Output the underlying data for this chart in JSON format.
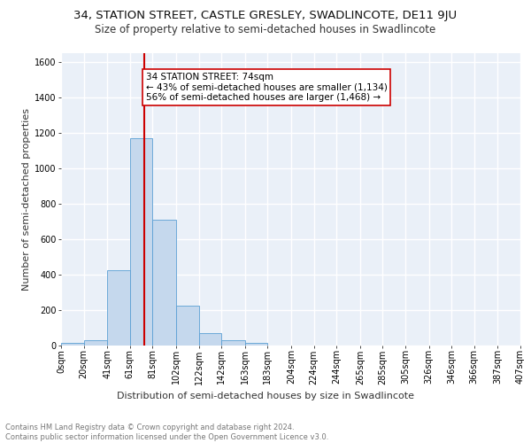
{
  "title_line1": "34, STATION STREET, CASTLE GRESLEY, SWADLINCOTE, DE11 9JU",
  "title_line2": "Size of property relative to semi-detached houses in Swadlincote",
  "xlabel": "Distribution of semi-detached houses by size in Swadlincote",
  "ylabel": "Number of semi-detached properties",
  "bin_edges": [
    0,
    20,
    41,
    61,
    81,
    102,
    122,
    142,
    163,
    183,
    204,
    224,
    244,
    265,
    285,
    305,
    326,
    346,
    366,
    387,
    407
  ],
  "bar_heights": [
    15,
    30,
    425,
    1170,
    710,
    225,
    70,
    30,
    15,
    0,
    0,
    0,
    0,
    0,
    0,
    0,
    0,
    0,
    0,
    0
  ],
  "bar_color": "#c5d8ed",
  "bar_edge_color": "#5a9fd4",
  "property_size": 74,
  "red_line_color": "#cc0000",
  "annotation_line1": "34 STATION STREET: 74sqm",
  "annotation_line2": "← 43% of semi-detached houses are smaller (1,134)",
  "annotation_line3": "56% of semi-detached houses are larger (1,468) →",
  "annotation_box_color": "#ffffff",
  "annotation_box_edge_color": "#cc0000",
  "ylim": [
    0,
    1650
  ],
  "yticks": [
    0,
    200,
    400,
    600,
    800,
    1000,
    1200,
    1400,
    1600
  ],
  "tick_labels": [
    "0sqm",
    "20sqm",
    "41sqm",
    "61sqm",
    "81sqm",
    "102sqm",
    "122sqm",
    "142sqm",
    "163sqm",
    "183sqm",
    "204sqm",
    "224sqm",
    "244sqm",
    "265sqm",
    "285sqm",
    "305sqm",
    "326sqm",
    "346sqm",
    "366sqm",
    "387sqm",
    "407sqm"
  ],
  "background_color": "#eaf0f8",
  "grid_color": "#ffffff",
  "footer_text": "Contains HM Land Registry data © Crown copyright and database right 2024.\nContains public sector information licensed under the Open Government Licence v3.0.",
  "title_fontsize": 9.5,
  "subtitle_fontsize": 8.5,
  "axis_label_fontsize": 8,
  "tick_fontsize": 7,
  "annotation_fontsize": 7.5,
  "footer_fontsize": 6
}
